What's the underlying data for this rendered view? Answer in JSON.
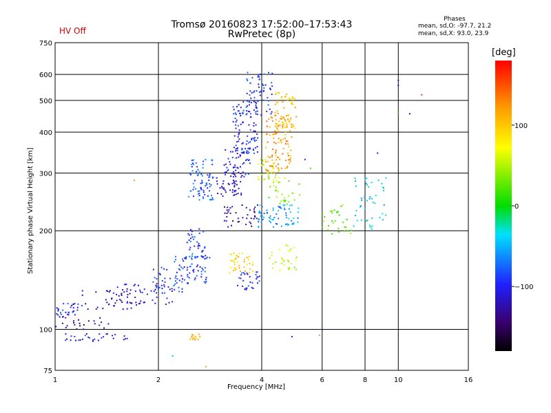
{
  "header": {
    "title_line1": "Tromsø 20160823 17:52:00–17:53:43",
    "title_line2": "RwPretec (8p)",
    "status": "HV Off",
    "status_color": "#d00000"
  },
  "phases_box": {
    "title": "Phases",
    "o_line": "mean, sd,O: -97.7, 21.2",
    "x_line": "mean, sd,X:  93.0, 23.9"
  },
  "colorbar": {
    "unit": "[deg]",
    "ticks": [
      {
        "value": 100,
        "label": "100"
      },
      {
        "value": 0,
        "label": "0"
      },
      {
        "value": -100,
        "label": "−100"
      }
    ],
    "range": [
      -180,
      180
    ]
  },
  "chart_data": {
    "type": "scatter",
    "xlabel": "Frequency [MHz]",
    "ylabel": "Stationary phase Virtual Height [km]",
    "xscale": "log",
    "yscale": "log",
    "xlim": [
      1,
      16
    ],
    "ylim": [
      75,
      750
    ],
    "xticks": [
      {
        "value": 1,
        "label": "1"
      },
      {
        "value": 2,
        "label": "2"
      },
      {
        "value": 4,
        "label": "4"
      },
      {
        "value": 6,
        "label": "6"
      },
      {
        "value": 8,
        "label": "8"
      },
      {
        "value": 10,
        "label": "10"
      },
      {
        "value": 16,
        "label": "16"
      }
    ],
    "yticks": [
      {
        "value": 75,
        "label": "75"
      },
      {
        "value": 100,
        "label": "100"
      },
      {
        "value": 200,
        "label": "200"
      },
      {
        "value": 300,
        "label": "300"
      },
      {
        "value": 400,
        "label": "400"
      },
      {
        "value": 500,
        "label": "500"
      },
      {
        "value": 600,
        "label": "600"
      },
      {
        "value": 750,
        "label": "750"
      }
    ],
    "grid": true,
    "color_encoding": "phase [deg]",
    "clusters": [
      {
        "freq": [
          1.0,
          1.2
        ],
        "height": [
          110,
          120
        ],
        "phase": -95,
        "n": 30
      },
      {
        "freq": [
          1.0,
          1.45
        ],
        "height": [
          100,
          110
        ],
        "phase": -130,
        "n": 25
      },
      {
        "freq": [
          1.07,
          1.65
        ],
        "height": [
          92,
          97
        ],
        "phase": -105,
        "n": 30
      },
      {
        "freq": [
          1.2,
          1.75
        ],
        "height": [
          115,
          132
        ],
        "phase": -120,
        "n": 40
      },
      {
        "freq": [
          1.5,
          2.2
        ],
        "height": [
          118,
          138
        ],
        "phase": -115,
        "n": 45
      },
      {
        "freq": [
          1.9,
          2.45
        ],
        "height": [
          128,
          155
        ],
        "phase": -95,
        "n": 40
      },
      {
        "freq": [
          2.2,
          2.9
        ],
        "height": [
          138,
          168
        ],
        "phase": -90,
        "n": 60
      },
      {
        "freq": [
          2.4,
          2.75
        ],
        "height": [
          165,
          205
        ],
        "phase": -90,
        "n": 40
      },
      {
        "freq": [
          2.45,
          2.9
        ],
        "height": [
          248,
          330
        ],
        "phase": -75,
        "n": 80
      },
      {
        "freq": [
          2.95,
          3.5
        ],
        "height": [
          255,
          290
        ],
        "phase": -115,
        "n": 40
      },
      {
        "freq": [
          3.1,
          3.7
        ],
        "height": [
          290,
          360
        ],
        "phase": -105,
        "n": 60
      },
      {
        "freq": [
          3.3,
          3.9
        ],
        "height": [
          340,
          500
        ],
        "phase": -95,
        "n": 100
      },
      {
        "freq": [
          3.6,
          4.3
        ],
        "height": [
          450,
          610
        ],
        "phase": -95,
        "n": 60
      },
      {
        "freq": [
          3.9,
          4.5
        ],
        "height": [
          285,
          330
        ],
        "phase": 60,
        "n": 30
      },
      {
        "freq": [
          4.1,
          4.9
        ],
        "height": [
          300,
          450
        ],
        "phase": 120,
        "n": 110
      },
      {
        "freq": [
          4.35,
          5.05
        ],
        "height": [
          400,
          530
        ],
        "phase": 100,
        "n": 60
      },
      {
        "freq": [
          3.1,
          3.9
        ],
        "height": [
          205,
          240
        ],
        "phase": -130,
        "n": 40
      },
      {
        "freq": [
          3.9,
          5.2
        ],
        "height": [
          205,
          240
        ],
        "phase": -60,
        "n": 70
      },
      {
        "freq": [
          4.2,
          5.2
        ],
        "height": [
          240,
          290
        ],
        "phase": 40,
        "n": 30
      },
      {
        "freq": [
          3.2,
          3.8
        ],
        "height": [
          148,
          172
        ],
        "phase": 95,
        "n": 40
      },
      {
        "freq": [
          3.4,
          3.95
        ],
        "height": [
          132,
          150
        ],
        "phase": -95,
        "n": 30
      },
      {
        "freq": [
          4.2,
          5.2
        ],
        "height": [
          150,
          185
        ],
        "phase": 60,
        "n": 30
      },
      {
        "freq": [
          2.45,
          2.65
        ],
        "height": [
          92,
          97
        ],
        "phase": 110,
        "n": 14
      },
      {
        "freq": [
          6.0,
          7.4
        ],
        "height": [
          195,
          240
        ],
        "phase": 30,
        "n": 30
      },
      {
        "freq": [
          7.4,
          9.2
        ],
        "height": [
          200,
          290
        ],
        "phase": -40,
        "n": 45
      }
    ],
    "scattered_points": [
      {
        "freq": 10.0,
        "height": 575,
        "phase": -110
      },
      {
        "freq": 10.0,
        "height": 555,
        "phase": -110
      },
      {
        "freq": 11.7,
        "height": 520,
        "phase": 160
      },
      {
        "freq": 10.0,
        "height": 460,
        "phase": 10
      },
      {
        "freq": 10.8,
        "height": 455,
        "phase": -130
      },
      {
        "freq": 8.7,
        "height": 345,
        "phase": -110
      },
      {
        "freq": 1.7,
        "height": 285,
        "phase": 120
      },
      {
        "freq": 2.2,
        "height": 83,
        "phase": -20
      },
      {
        "freq": 2.75,
        "height": 77,
        "phase": 120
      },
      {
        "freq": 4.9,
        "height": 95,
        "phase": -100
      },
      {
        "freq": 5.9,
        "height": 96,
        "phase": 120
      },
      {
        "freq": 5.55,
        "height": 310,
        "phase": 20
      },
      {
        "freq": 5.35,
        "height": 330,
        "phase": -100
      }
    ]
  }
}
